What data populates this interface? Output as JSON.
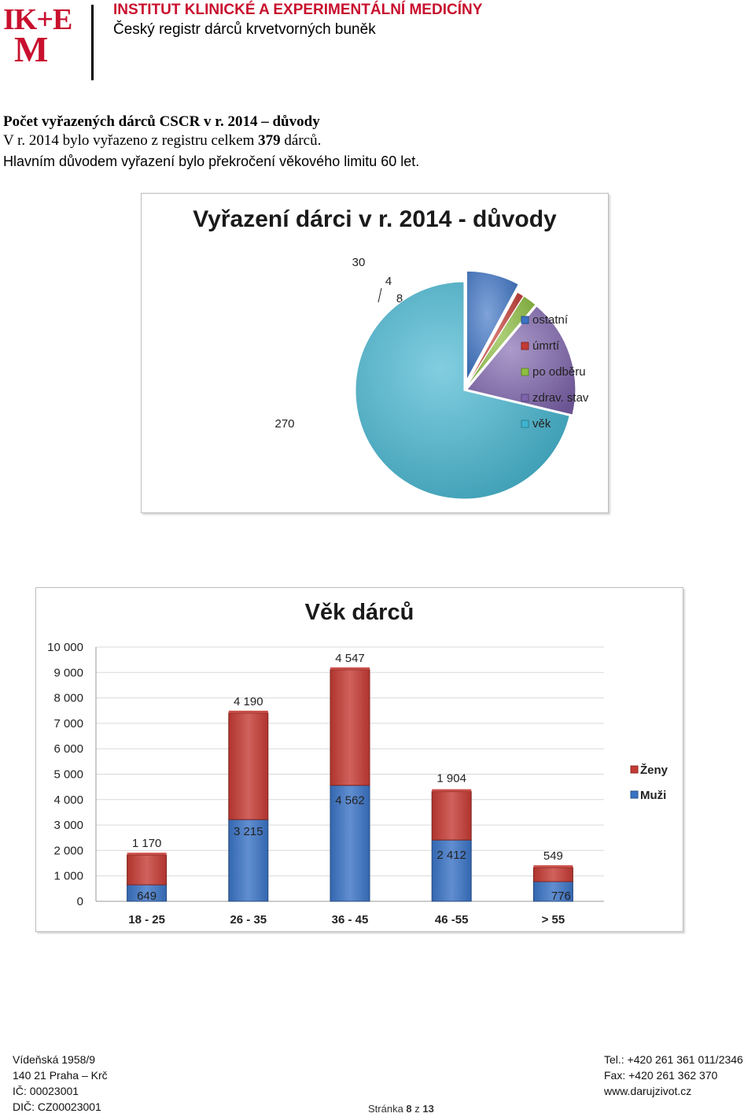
{
  "header": {
    "logo_top": "IK+E",
    "logo_bottom": "M",
    "institute": "INSTITUT KLINICKÉ A EXPERIMENTÁLNÍ MEDICÍNY",
    "registry": "Český registr dárců krvetvorných buněk",
    "colors": {
      "brand": "#c8102e",
      "logo": "#c8102e"
    }
  },
  "intro": {
    "heading": "Počet vyřazených dárců CSCR v r. 2014 – důvody",
    "line2_prefix": "V  r. 2014 bylo vyřazeno z registru celkem ",
    "line2_count": "379",
    "line2_suffix": "  dárců.",
    "line3": "Hlavním důvodem vyřazení bylo překročení věkového limitu 60 let."
  },
  "chart_data": [
    {
      "type": "pie",
      "title": "Vyřazení dárci v r. 2014 - důvody",
      "legend_position": "right",
      "slices": [
        {
          "label": "ostatní",
          "value": 30,
          "color": "#3a72c4"
        },
        {
          "label": "úmrtí",
          "value": 4,
          "color": "#c43a33"
        },
        {
          "label": "po odběru",
          "value": 8,
          "color": "#8cbf3f"
        },
        {
          "label": "zdrav. stav",
          "value": 67,
          "color": "#7e63ad"
        },
        {
          "label": "věk",
          "value": 270,
          "color": "#3fb4cf"
        }
      ]
    },
    {
      "type": "bar",
      "stacked": true,
      "title": "Věk dárců",
      "categories": [
        "18  - 25",
        "26 - 35",
        "36 - 45",
        "46 -55",
        "> 55"
      ],
      "series": [
        {
          "name": "Muži",
          "values": [
            649,
            3215,
            4562,
            2412,
            776
          ],
          "color": "#3a72c4"
        },
        {
          "name": "Ženy",
          "values": [
            1170,
            4190,
            4547,
            1904,
            549
          ],
          "color": "#c43a33"
        }
      ],
      "ylim": [
        0,
        10000
      ],
      "yticks": [
        "0",
        "1 000",
        "2 000",
        "3 000",
        "4 000",
        "5 000",
        "6 000",
        "7 000",
        "8 000",
        "9 000",
        "10 000"
      ],
      "data_labels": {
        "Muži": [
          "649",
          "3 215",
          "4 562",
          "2 412",
          "776"
        ],
        "Ženy": [
          "1 170",
          "4 190",
          "4 547",
          "1 904",
          "549"
        ]
      },
      "legend_position": "right",
      "grid": true
    }
  ],
  "footer": {
    "address1": "Vídeňská 1958/9",
    "address2": "140 21 Praha – Krč",
    "ic": "IČ: 00023001",
    "dic": "DIČ: CZ00023001",
    "tel": "Tel.: +420 261 361 011/2346",
    "fax": "Fax: +420 261 362 370",
    "web": "www.darujzivot.cz",
    "page_prefix": "Stránka ",
    "page_num": "8",
    "page_mid": " z ",
    "page_total": "13"
  }
}
